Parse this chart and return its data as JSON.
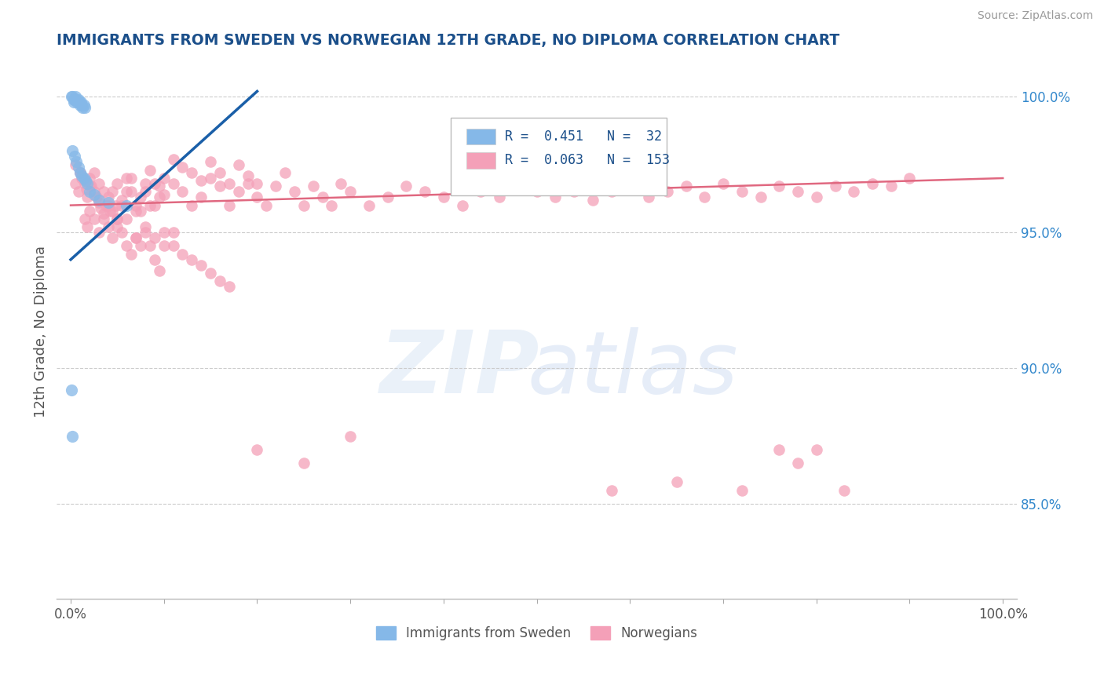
{
  "title": "IMMIGRANTS FROM SWEDEN VS NORWEGIAN 12TH GRADE, NO DIPLOMA CORRELATION CHART",
  "source": "Source: ZipAtlas.com",
  "ylabel": "12th Grade, No Diploma",
  "right_yticks": [
    0.85,
    0.9,
    0.95,
    1.0
  ],
  "right_yticklabels": [
    "85.0%",
    "90.0%",
    "95.0%",
    "100.0%"
  ],
  "legend_r_blue": "0.451",
  "legend_n_blue": "32",
  "legend_r_pink": "0.063",
  "legend_n_pink": "153",
  "legend_label_blue": "Immigrants from Sweden",
  "legend_label_pink": "Norwegians",
  "blue_color": "#85B8E8",
  "pink_color": "#F4A0B8",
  "blue_line_color": "#1A5FA8",
  "pink_line_color": "#E06880",
  "title_color": "#1B4F8A",
  "source_color": "#999999",
  "axis_label_color": "#555555",
  "right_tick_color": "#3388CC",
  "grid_color": "#CCCCCC",
  "ylim_low": 0.815,
  "ylim_high": 1.012,
  "xlim_low": -0.015,
  "xlim_high": 1.015,
  "blue_x": [
    0.001,
    0.002,
    0.003,
    0.003,
    0.004,
    0.005,
    0.006,
    0.007,
    0.008,
    0.009,
    0.01,
    0.011,
    0.012,
    0.013,
    0.014,
    0.015,
    0.002,
    0.004,
    0.006,
    0.008,
    0.01,
    0.012,
    0.014,
    0.016,
    0.018,
    0.02,
    0.025,
    0.03,
    0.04,
    0.06,
    0.001,
    0.002
  ],
  "blue_y": [
    1.0,
    1.0,
    0.999,
    0.998,
    0.999,
    1.0,
    0.999,
    0.998,
    0.999,
    0.998,
    0.997,
    0.998,
    0.997,
    0.996,
    0.997,
    0.996,
    0.98,
    0.978,
    0.976,
    0.974,
    0.972,
    0.971,
    0.97,
    0.969,
    0.968,
    0.965,
    0.964,
    0.962,
    0.961,
    0.96,
    0.892,
    0.875
  ],
  "pink_x": [
    0.005,
    0.008,
    0.01,
    0.012,
    0.015,
    0.017,
    0.018,
    0.02,
    0.022,
    0.025,
    0.028,
    0.03,
    0.032,
    0.035,
    0.038,
    0.04,
    0.042,
    0.045,
    0.048,
    0.05,
    0.055,
    0.06,
    0.065,
    0.07,
    0.075,
    0.08,
    0.085,
    0.09,
    0.095,
    0.1,
    0.005,
    0.01,
    0.015,
    0.02,
    0.025,
    0.03,
    0.035,
    0.04,
    0.045,
    0.05,
    0.055,
    0.06,
    0.065,
    0.07,
    0.075,
    0.08,
    0.085,
    0.09,
    0.095,
    0.1,
    0.11,
    0.12,
    0.13,
    0.14,
    0.15,
    0.16,
    0.17,
    0.18,
    0.19,
    0.2,
    0.21,
    0.22,
    0.23,
    0.24,
    0.25,
    0.26,
    0.27,
    0.28,
    0.29,
    0.3,
    0.32,
    0.34,
    0.36,
    0.38,
    0.4,
    0.42,
    0.44,
    0.46,
    0.48,
    0.5,
    0.52,
    0.54,
    0.56,
    0.58,
    0.6,
    0.62,
    0.64,
    0.66,
    0.68,
    0.7,
    0.72,
    0.74,
    0.76,
    0.78,
    0.8,
    0.82,
    0.84,
    0.86,
    0.88,
    0.9,
    0.11,
    0.12,
    0.13,
    0.14,
    0.15,
    0.16,
    0.17,
    0.18,
    0.19,
    0.2,
    0.015,
    0.018,
    0.02,
    0.025,
    0.03,
    0.035,
    0.04,
    0.045,
    0.05,
    0.055,
    0.06,
    0.065,
    0.07,
    0.075,
    0.08,
    0.085,
    0.09,
    0.095,
    0.1,
    0.11,
    0.12,
    0.13,
    0.14,
    0.15,
    0.16,
    0.17,
    0.05,
    0.06,
    0.07,
    0.08,
    0.09,
    0.1,
    0.11,
    0.58,
    0.65,
    0.72,
    0.76,
    0.78,
    0.8,
    0.83,
    0.2,
    0.25,
    0.3
  ],
  "pink_y": [
    0.968,
    0.965,
    0.972,
    0.97,
    0.968,
    0.966,
    0.963,
    0.97,
    0.967,
    0.965,
    0.963,
    0.961,
    0.959,
    0.957,
    0.96,
    0.963,
    0.958,
    0.965,
    0.96,
    0.968,
    0.962,
    0.97,
    0.965,
    0.96,
    0.958,
    0.965,
    0.96,
    0.968,
    0.963,
    0.97,
    0.975,
    0.972,
    0.969,
    0.967,
    0.972,
    0.968,
    0.965,
    0.96,
    0.958,
    0.955,
    0.96,
    0.965,
    0.97,
    0.958,
    0.963,
    0.968,
    0.973,
    0.96,
    0.967,
    0.964,
    0.968,
    0.965,
    0.96,
    0.963,
    0.97,
    0.967,
    0.96,
    0.965,
    0.968,
    0.963,
    0.96,
    0.967,
    0.972,
    0.965,
    0.96,
    0.967,
    0.963,
    0.96,
    0.968,
    0.965,
    0.96,
    0.963,
    0.967,
    0.965,
    0.963,
    0.96,
    0.965,
    0.963,
    0.967,
    0.965,
    0.963,
    0.965,
    0.962,
    0.965,
    0.967,
    0.963,
    0.965,
    0.967,
    0.963,
    0.968,
    0.965,
    0.963,
    0.967,
    0.965,
    0.963,
    0.967,
    0.965,
    0.968,
    0.967,
    0.97,
    0.977,
    0.974,
    0.972,
    0.969,
    0.976,
    0.972,
    0.968,
    0.975,
    0.971,
    0.968,
    0.955,
    0.952,
    0.958,
    0.955,
    0.95,
    0.955,
    0.952,
    0.948,
    0.955,
    0.95,
    0.945,
    0.942,
    0.948,
    0.945,
    0.95,
    0.945,
    0.94,
    0.936,
    0.95,
    0.945,
    0.942,
    0.94,
    0.938,
    0.935,
    0.932,
    0.93,
    0.952,
    0.955,
    0.948,
    0.952,
    0.948,
    0.945,
    0.95,
    0.855,
    0.858,
    0.855,
    0.87,
    0.865,
    0.87,
    0.855,
    0.87,
    0.865,
    0.875
  ],
  "blue_trend_x": [
    0.0,
    0.2
  ],
  "blue_trend_y_start": 0.94,
  "blue_trend_y_end": 1.002,
  "pink_trend_x": [
    0.0,
    1.0
  ],
  "pink_trend_y_start": 0.96,
  "pink_trend_y_end": 0.97
}
